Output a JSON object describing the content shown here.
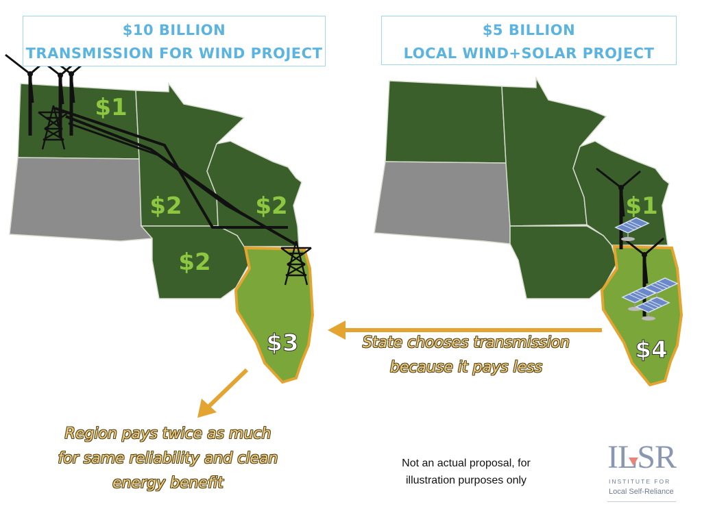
{
  "left_panel": {
    "title_line1": "$10 BILLION",
    "title_line2": "TRANSMISSION FOR WIND PROJECT",
    "labels": {
      "north_dakota": "$1",
      "minnesota": "$2",
      "wisconsin": "$2",
      "iowa": "$2",
      "illinois": "$3"
    }
  },
  "right_panel": {
    "title_line1": "$5 BILLION",
    "title_line2": "LOCAL WIND+SOLAR PROJECT",
    "labels": {
      "wisconsin": "$1",
      "illinois": "$4"
    }
  },
  "state_caption": {
    "line1": "State chooses transmission",
    "line2": "because it pays less"
  },
  "region_caption": {
    "line1": "Region pays twice as much",
    "line2": "for same reliability and clean",
    "line3": "energy benefit"
  },
  "disclaimer": {
    "line1": "Not an actual proposal, for",
    "line2": "illustration purposes only"
  },
  "logo": {
    "mark": "ILSR",
    "line1": "INSTITUTE FOR",
    "line2": "Local Self-Reliance"
  },
  "colors": {
    "dark_green": "#3a5f2a",
    "light_green": "#7aa63a",
    "label_green": "#8dc641",
    "gray": "#8c8c8c",
    "orange": "#e3a431",
    "title_blue": "#5bb4e0"
  },
  "icons": [
    "wind-turbine-icon",
    "transmission-tower-icon",
    "solar-panel-icon",
    "arrow-icon"
  ]
}
